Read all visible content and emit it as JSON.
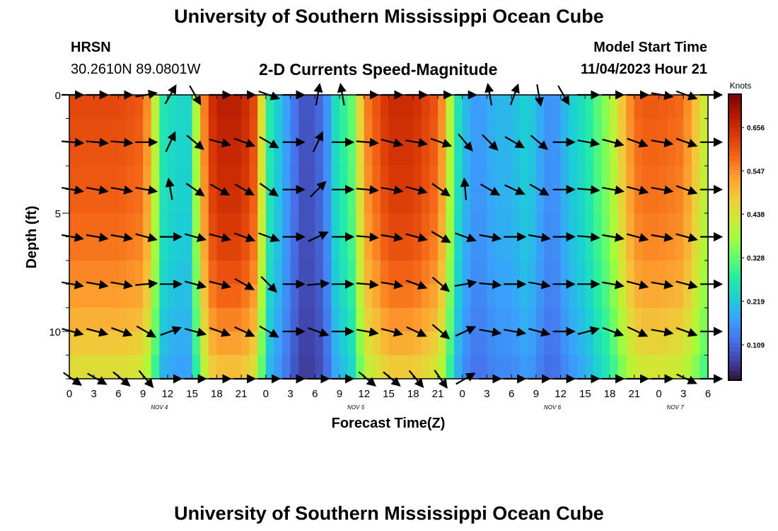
{
  "page": {
    "title": "University of Southern Mississippi Ocean Cube",
    "footer_title": "University of Southern Mississippi Ocean Cube"
  },
  "header": {
    "station": "HRSN",
    "location": "30.2610N  89.0801W",
    "subtitle": "2-D Currents Speed-Magnitude",
    "model_start_label": "Model Start Time",
    "model_start_value": "11/04/2023 Hour 21"
  },
  "colors": {
    "ramp": [
      "#30123b",
      "#4145ab",
      "#4675ed",
      "#39a2fc",
      "#1bcfd4",
      "#24eca6",
      "#61fc6c",
      "#a4fc3b",
      "#d1e834",
      "#f3c63a",
      "#fe9b2d",
      "#f36315",
      "#d93806",
      "#b11901",
      "#7a0402"
    ],
    "arrow": "#000000"
  },
  "chart_data": {
    "type": "heatmap",
    "title": "2-D Currents Speed-Magnitude",
    "xlabel": "Forecast Time(Z)",
    "ylabel": "Depth (ft)",
    "x_tick_labels": [
      "0",
      "3",
      "6",
      "9",
      "12",
      "15",
      "18",
      "21",
      "0",
      "3",
      "6",
      "9",
      "12",
      "15",
      "18",
      "21",
      "0",
      "3",
      "6",
      "9",
      "12",
      "15",
      "18",
      "21",
      "0",
      "3",
      "6"
    ],
    "x_hours": [
      0,
      3,
      6,
      9,
      12,
      15,
      18,
      21,
      24,
      27,
      30,
      33,
      36,
      39,
      42,
      45,
      48,
      51,
      54,
      57,
      60,
      63,
      66,
      69,
      72,
      75,
      78
    ],
    "day_labels": [
      {
        "label": "NOV 4",
        "hour": 11
      },
      {
        "label": "NOV 5",
        "hour": 35
      },
      {
        "label": "NOV 6",
        "hour": 59
      },
      {
        "label": "NOV 7",
        "hour": 74
      }
    ],
    "xlim": [
      0,
      78
    ],
    "y_tick_labels": [
      "0",
      "5",
      "10"
    ],
    "y_ticks": [
      0,
      5,
      10
    ],
    "ylim": [
      0,
      12
    ],
    "depths": [
      0,
      2,
      4,
      6,
      8,
      10,
      12
    ],
    "colorbar": {
      "label": "Knots",
      "ticks": [
        "0.656",
        "0.547",
        "0.438",
        "0.328",
        "0.219",
        "0.109"
      ],
      "tick_values": [
        0.656,
        0.547,
        0.438,
        0.328,
        0.219,
        0.109
      ],
      "range": [
        0.02,
        0.74
      ]
    },
    "speed_profile_hours": [
      0,
      3,
      6,
      9,
      10,
      11,
      12,
      13,
      14,
      15,
      16,
      17,
      18,
      21,
      23,
      24,
      25,
      26,
      27,
      28,
      29,
      30,
      31,
      32,
      33,
      34,
      35,
      36,
      39,
      42,
      45,
      46,
      47,
      48,
      49,
      50,
      51,
      52,
      54,
      55,
      56,
      57,
      58,
      59,
      60,
      61,
      62,
      63,
      64,
      66,
      67,
      68,
      69,
      70,
      72,
      75,
      78
    ],
    "speed_profile_surface": [
      0.62,
      0.62,
      0.62,
      0.6,
      0.5,
      0.32,
      0.22,
      0.28,
      0.2,
      0.28,
      0.5,
      0.63,
      0.68,
      0.68,
      0.6,
      0.3,
      0.25,
      0.2,
      0.15,
      0.1,
      0.08,
      0.1,
      0.12,
      0.2,
      0.3,
      0.28,
      0.38,
      0.55,
      0.66,
      0.66,
      0.6,
      0.5,
      0.3,
      0.22,
      0.18,
      0.16,
      0.18,
      0.2,
      0.2,
      0.22,
      0.24,
      0.2,
      0.17,
      0.15,
      0.18,
      0.22,
      0.24,
      0.26,
      0.3,
      0.38,
      0.45,
      0.52,
      0.58,
      0.6,
      0.6,
      0.58,
      0.4
    ],
    "depth_factors": [
      1.0,
      0.98,
      0.96,
      0.93,
      0.88,
      0.8,
      0.7
    ],
    "vector_hours": [
      0,
      3,
      6,
      9,
      12,
      15,
      18,
      21,
      24,
      27,
      30,
      33,
      36,
      39,
      42,
      45,
      48,
      51,
      54,
      57,
      60,
      63,
      66,
      69,
      72,
      75,
      78
    ],
    "vector_rows": [
      {
        "depth": 0,
        "dirs": [
          0,
          0,
          0,
          10,
          60,
          -60,
          0,
          0,
          -20,
          0,
          80,
          100,
          0,
          0,
          0,
          0,
          0,
          100,
          70,
          -80,
          -60,
          0,
          0,
          0,
          -10,
          -20,
          0
        ]
      },
      {
        "depth": 2,
        "dirs": [
          -5,
          -5,
          -5,
          0,
          65,
          -40,
          -15,
          -20,
          -30,
          0,
          65,
          0,
          -5,
          -15,
          -10,
          -20,
          -50,
          -45,
          -30,
          -40,
          0,
          -10,
          -15,
          -20,
          -10,
          -20,
          0
        ]
      },
      {
        "depth": 4,
        "dirs": [
          -10,
          -10,
          -10,
          -10,
          100,
          -35,
          -30,
          -30,
          -35,
          0,
          45,
          0,
          -5,
          -10,
          -15,
          -35,
          95,
          -30,
          -25,
          -30,
          0,
          -5,
          -10,
          -15,
          -10,
          -20,
          0
        ]
      },
      {
        "depth": 6,
        "dirs": [
          -10,
          -10,
          -10,
          -15,
          0,
          -15,
          -15,
          -20,
          -20,
          0,
          25,
          0,
          -5,
          -10,
          -15,
          -30,
          -20,
          -10,
          0,
          -10,
          0,
          -5,
          -10,
          -15,
          -10,
          -15,
          0
        ]
      },
      {
        "depth": 8,
        "dirs": [
          -10,
          -10,
          -10,
          5,
          0,
          -15,
          -15,
          -30,
          -45,
          0,
          5,
          0,
          -5,
          -10,
          -20,
          -40,
          10,
          -5,
          0,
          -10,
          0,
          0,
          -10,
          -15,
          -10,
          -15,
          0
        ]
      },
      {
        "depth": 10,
        "dirs": [
          -15,
          -15,
          -20,
          -30,
          20,
          -15,
          -20,
          -25,
          -30,
          0,
          -20,
          0,
          -10,
          -15,
          -25,
          -40,
          25,
          -10,
          -10,
          -15,
          0,
          15,
          -20,
          -25,
          -10,
          -20,
          0
        ]
      },
      {
        "depth": 12,
        "dirs": [
          -35,
          -30,
          -40,
          -50,
          0,
          0,
          0,
          0,
          0,
          0,
          0,
          0,
          -40,
          -40,
          -50,
          -55,
          30,
          0,
          0,
          0,
          0,
          0,
          0,
          0,
          0,
          -25,
          0
        ]
      }
    ]
  }
}
